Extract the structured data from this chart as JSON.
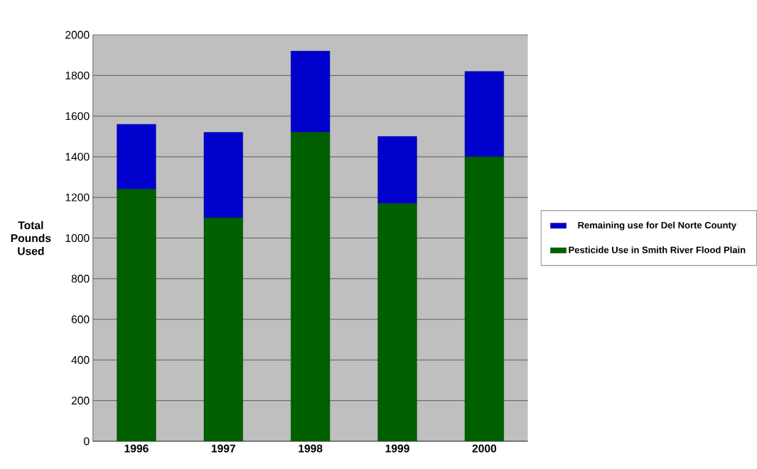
{
  "chart_data": {
    "type": "bar",
    "stacked": true,
    "ylabel": "Total Pounds Used",
    "categories": [
      "1996",
      "1997",
      "1998",
      "1999",
      "2000"
    ],
    "series": [
      {
        "name": "Pesticide Use in Smith River Flood Plain",
        "color": "#006000",
        "values": [
          1240,
          1100,
          1520,
          1170,
          1400
        ]
      },
      {
        "name": "Remaining use for Del Norte County",
        "color": "#0000cc",
        "values": [
          320,
          420,
          400,
          330,
          420
        ]
      }
    ],
    "ylim": [
      0,
      2000
    ],
    "yticks": [
      0,
      200,
      400,
      600,
      800,
      1000,
      1200,
      1400,
      1600,
      1800,
      2000
    ],
    "grid": "y",
    "legend": "right"
  }
}
